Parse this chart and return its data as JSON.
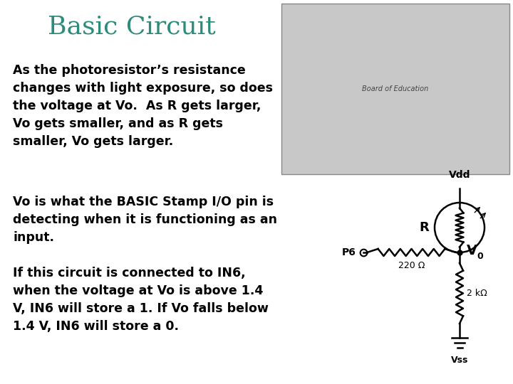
{
  "title": "Basic Circuit",
  "title_color": "#2e8b7a",
  "title_fontsize": 26,
  "bg_color": "#ffffff",
  "text_color": "#000000",
  "paragraph1": "As the photoresistor’s resistance\nchanges with light exposure, so does\nthe voltage at Vo.  As R gets larger,\nVo gets smaller, and as R gets\nsmaller, Vo gets larger.",
  "paragraph2": "Vo is what the BASIC Stamp I/O pin is\ndetecting when it is functioning as an\ninput.",
  "paragraph3": "If this circuit is connected to IN6,\nwhen the voltage at Vo is above 1.4\nV, IN6 will store a 1. If Vo falls below\n1.4 V, IN6 will store a 0.",
  "text_fontsize": 12.5,
  "vdd_label": "Vdd",
  "vss_label": "Vss",
  "r_label": "R",
  "v0_label": "V",
  "v0_sub": "0",
  "p6_label": "P6",
  "r220_label": "220 Ω",
  "r2k_label": "2 kΩ",
  "board_color": "#c8c8c8",
  "board_border": "#888888"
}
